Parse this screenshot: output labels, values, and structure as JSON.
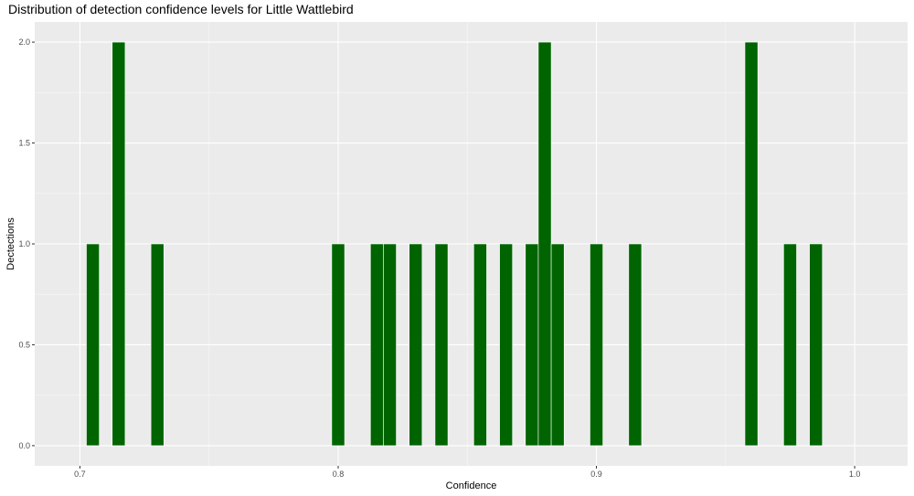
{
  "chart_data": {
    "type": "bar",
    "title": "Distribution of detection confidence levels for Little Wattlebird",
    "xlabel": "Confidence",
    "ylabel": "Dectections",
    "xlim": [
      0.6825,
      1.0205
    ],
    "ylim": [
      -0.1,
      2.1
    ],
    "bin_width": 0.005,
    "x_ticks": [
      0.7,
      0.8,
      0.9,
      1.0
    ],
    "x_tick_labels": [
      "0.7",
      "0.8",
      "0.9",
      "1.0"
    ],
    "y_ticks": [
      0.0,
      0.5,
      1.0,
      1.5,
      2.0
    ],
    "y_tick_labels": [
      "0.0",
      "0.5",
      "1.0",
      "1.5",
      "2.0"
    ],
    "grid": true,
    "bar_color": "#006400",
    "panel_background": "#ebebeb",
    "x": [
      0.705,
      0.715,
      0.73,
      0.8,
      0.815,
      0.82,
      0.83,
      0.84,
      0.855,
      0.865,
      0.875,
      0.88,
      0.885,
      0.9,
      0.915,
      0.96,
      0.975,
      0.985
    ],
    "values": [
      1,
      2,
      1,
      1,
      1,
      1,
      1,
      1,
      1,
      1,
      1,
      2,
      1,
      1,
      1,
      2,
      1,
      1
    ]
  }
}
